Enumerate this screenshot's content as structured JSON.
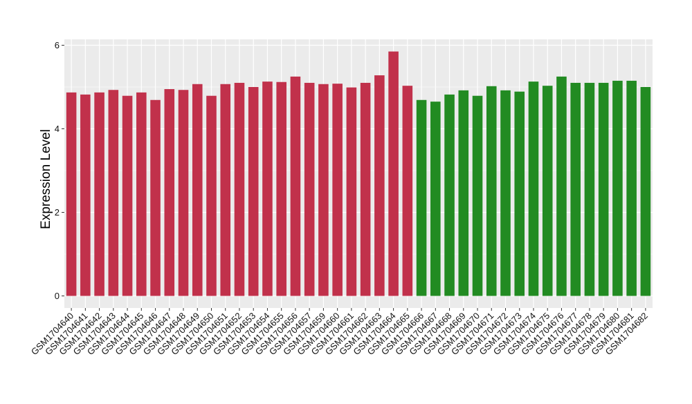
{
  "chart_data": {
    "type": "bar",
    "title": "",
    "xlabel": "",
    "ylabel": "Expression Level",
    "ylim": [
      0,
      6.2
    ],
    "yticks": [
      0,
      2,
      4,
      6
    ],
    "grid": true,
    "colors": {
      "panel": "#ebebeb",
      "grid": "#ffffff",
      "axis_text": "#111111",
      "group1": "#c1314b",
      "group2": "#228b22"
    },
    "categories": [
      "GSM1704640",
      "GSM1704641",
      "GSM1704642",
      "GSM1704643",
      "GSM1704644",
      "GSM1704645",
      "GSM1704646",
      "GSM1704647",
      "GSM1704648",
      "GSM1704649",
      "GSM1704650",
      "GSM1704651",
      "GSM1704652",
      "GSM1704653",
      "GSM1704654",
      "GSM1704655",
      "GSM1704656",
      "GSM1704657",
      "GSM1704659",
      "GSM1704660",
      "GSM1704661",
      "GSM1704662",
      "GSM1704663",
      "GSM1704664",
      "GSM1704665",
      "GSM1704666",
      "GSM1704667",
      "GSM1704668",
      "GSM1704669",
      "GSM1704670",
      "GSM1704671",
      "GSM1704672",
      "GSM1704673",
      "GSM1704674",
      "GSM1704675",
      "GSM1704676",
      "GSM1704677",
      "GSM1704678",
      "GSM1704679",
      "GSM1704680",
      "GSM1704681",
      "GSM1704682"
    ],
    "values": [
      4.87,
      4.82,
      4.87,
      4.93,
      4.79,
      4.87,
      4.69,
      4.95,
      4.93,
      5.07,
      4.79,
      5.07,
      5.1,
      5.0,
      5.13,
      5.12,
      5.25,
      5.1,
      5.07,
      5.08,
      4.99,
      5.1,
      5.28,
      5.85,
      5.03,
      4.69,
      4.65,
      4.82,
      4.92,
      4.79,
      5.02,
      4.92,
      4.89,
      5.13,
      5.03,
      5.25,
      5.1,
      5.1,
      5.1,
      5.15,
      5.15,
      5.0
    ],
    "group_of_bar": [
      1,
      1,
      1,
      1,
      1,
      1,
      1,
      1,
      1,
      1,
      1,
      1,
      1,
      1,
      1,
      1,
      1,
      1,
      1,
      1,
      1,
      1,
      1,
      1,
      1,
      2,
      2,
      2,
      2,
      2,
      2,
      2,
      2,
      2,
      2,
      2,
      2,
      2,
      2,
      2,
      2,
      2
    ]
  }
}
